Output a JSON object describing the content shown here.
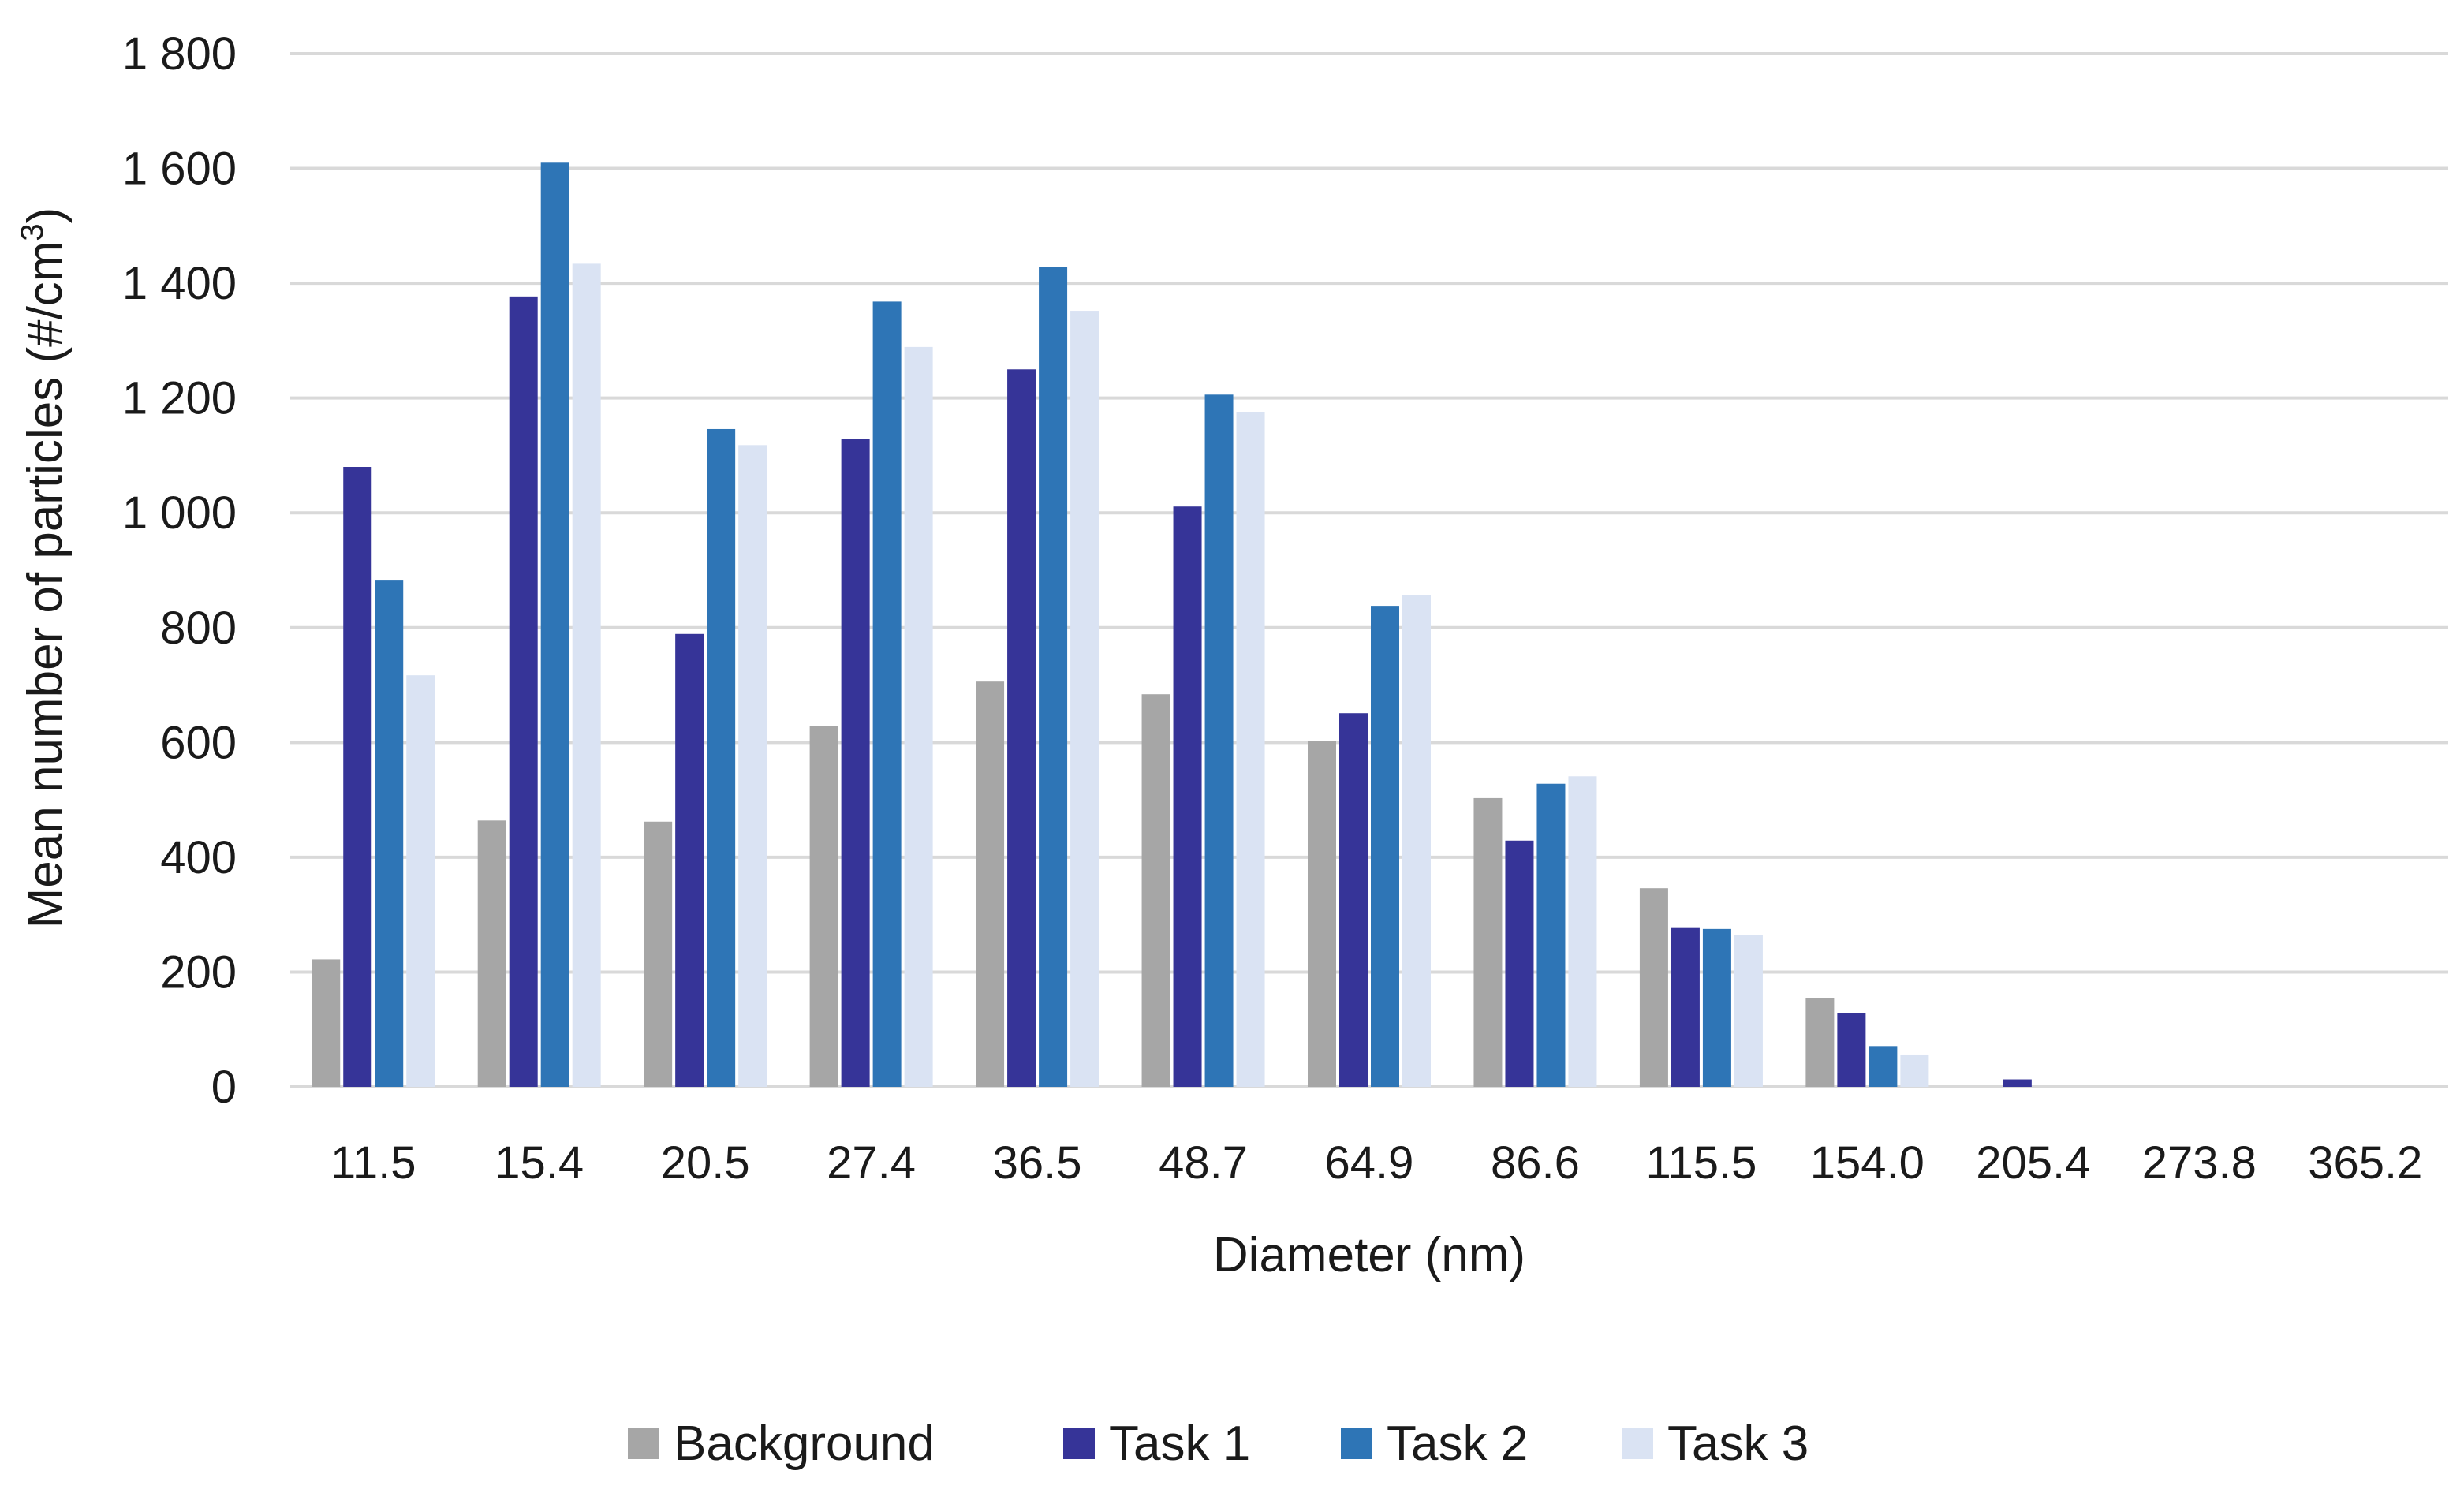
{
  "chart_data": {
    "type": "bar",
    "title": "",
    "xlabel": "Diameter (nm)",
    "ylabel_main": "Mean number of particles (#/cm",
    "ylabel_sup": "3",
    "ylabel_close": ")",
    "ylim": [
      0,
      1800
    ],
    "yticks": [
      0,
      200,
      400,
      600,
      800,
      1000,
      1200,
      1400,
      1600,
      1800
    ],
    "ytick_labels": [
      "0",
      "200",
      "400",
      "600",
      "800",
      "1 000",
      "1 200",
      "1 400",
      "1 600",
      "1 800"
    ],
    "grid": true,
    "legend_position": "bottom",
    "categories": [
      "11.5",
      "15.4",
      "20.5",
      "27.4",
      "36.5",
      "48.7",
      "64.9",
      "86.6",
      "115.5",
      "154.0",
      "205.4",
      "273.8",
      "365.2"
    ],
    "series": [
      {
        "name": "Background",
        "color": "#a6a6a6",
        "values": [
          222,
          464,
          462,
          629,
          706,
          684,
          602,
          503,
          346,
          154,
          0,
          0,
          0
        ]
      },
      {
        "name": "Task 1",
        "color": "#363498",
        "values": [
          1080,
          1377,
          789,
          1129,
          1250,
          1011,
          651,
          429,
          278,
          129,
          13,
          0,
          0
        ]
      },
      {
        "name": "Task 2",
        "color": "#2e75b6",
        "values": [
          882,
          1610,
          1146,
          1368,
          1429,
          1206,
          838,
          528,
          275,
          71,
          0,
          0,
          0
        ]
      },
      {
        "name": "Task 3",
        "color": "#dae3f3",
        "values": [
          717,
          1434,
          1118,
          1289,
          1352,
          1176,
          857,
          541,
          264,
          55,
          0,
          0,
          0
        ]
      }
    ]
  }
}
